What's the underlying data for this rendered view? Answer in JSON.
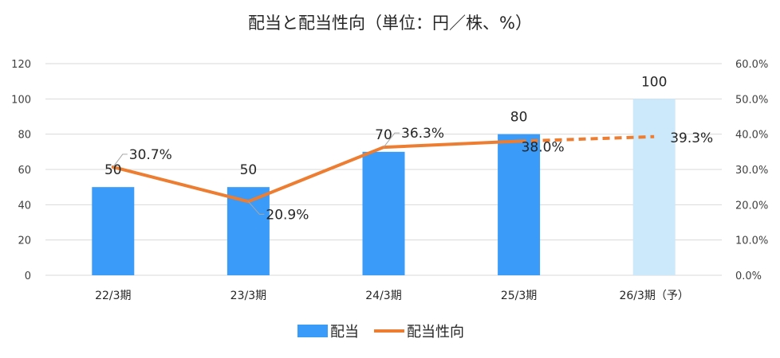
{
  "chart_data": {
    "type": "bar",
    "title": "配当と配当性向（単位：円／株、%）",
    "categories": [
      "22/3期",
      "23/3期",
      "24/3期",
      "25/3期",
      "26/3期（予）"
    ],
    "series": [
      {
        "name": "配当",
        "type": "bar",
        "axis": "left",
        "values": [
          50,
          50,
          70,
          80,
          100
        ],
        "value_labels": [
          "50",
          "50",
          "70",
          "80",
          "100"
        ],
        "color": "#3a9bf8",
        "forecast_color": "#cce9fb",
        "forecast_index": 4
      },
      {
        "name": "配当性向",
        "type": "line",
        "axis": "right",
        "values": [
          30.7,
          20.9,
          36.3,
          38.0,
          39.3
        ],
        "value_labels": [
          "30.7%",
          "20.9%",
          "36.3%",
          "38.0%",
          "39.3%"
        ],
        "color": "#ed7d31",
        "forecast_dashed_from_index": 3
      }
    ],
    "ylim_left": [
      0,
      120
    ],
    "yticks_left": [
      "0",
      "20",
      "40",
      "60",
      "80",
      "100",
      "120"
    ],
    "ylim_right": [
      0,
      60
    ],
    "yticks_right": [
      "0.0%",
      "10.0%",
      "20.0%",
      "30.0%",
      "40.0%",
      "50.0%",
      "60.0%"
    ],
    "grid": true,
    "legend_position": "bottom"
  }
}
